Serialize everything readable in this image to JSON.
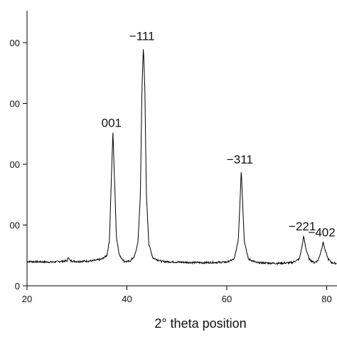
{
  "chart_data": {
    "type": "line",
    "xlabel": "2° theta position",
    "ylabel": "",
    "xlim": [
      20,
      82
    ],
    "ylim": [
      0,
      460
    ],
    "x_ticks": [
      20,
      40,
      60,
      80
    ],
    "y_ticks": [
      0,
      100,
      200,
      300,
      400
    ],
    "y_tick_labels_visible": [
      "0",
      "00",
      "00",
      "00",
      "00"
    ],
    "grid": false,
    "line_color": "#000000",
    "peaks": [
      {
        "label": "001",
        "x": 37.2,
        "y": 252
      },
      {
        "label": "−111",
        "x": 43.3,
        "y": 395
      },
      {
        "label": "−311",
        "x": 62.9,
        "y": 192
      },
      {
        "label": "−221",
        "x": 75.4,
        "y": 82
      },
      {
        "label": "−402",
        "x": 79.3,
        "y": 72
      }
    ],
    "minor_peaks": [
      {
        "x": 28.3,
        "y": 48
      }
    ],
    "baseline": {
      "start": 40,
      "end": 37
    },
    "series": [
      {
        "x": [
          20,
          25,
          28,
          28.3,
          28.6,
          30,
          33,
          35,
          36,
          36.5,
          36.9,
          37.2,
          37.5,
          37.9,
          38.5,
          39.5,
          40.5,
          41.5,
          42.2,
          42.7,
          43.0,
          43.3,
          43.6,
          43.9,
          44.4,
          45.2,
          47,
          50,
          55,
          60,
          61.5,
          62.3,
          62.7,
          62.9,
          63.1,
          63.5,
          64.3,
          66,
          70,
          73,
          74.5,
          75.0,
          75.4,
          75.8,
          76.5,
          77.5,
          78.3,
          78.9,
          79.3,
          79.7,
          80.3,
          81,
          82
        ],
        "y": [
          40,
          39,
          41,
          48,
          41,
          40,
          41,
          44,
          50,
          75,
          180,
          252,
          180,
          80,
          50,
          40,
          40,
          48,
          70,
          150,
          320,
          395,
          320,
          150,
          68,
          46,
          40,
          39,
          38,
          39,
          44,
          75,
          150,
          192,
          150,
          75,
          44,
          38,
          37,
          38,
          44,
          62,
          82,
          62,
          44,
          38,
          42,
          58,
          72,
          58,
          44,
          38,
          37
        ]
      }
    ]
  }
}
